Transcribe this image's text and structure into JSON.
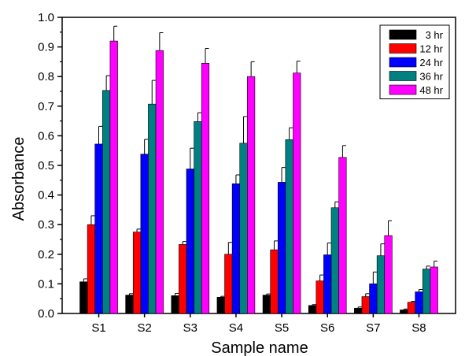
{
  "chart_data": {
    "type": "bar",
    "xlabel": "Sample name",
    "ylabel": "Absorbance",
    "ylim": [
      0,
      1.0
    ],
    "y_ticks": [
      "0.0",
      "0.1",
      "0.2",
      "0.3",
      "0.4",
      "0.5",
      "0.6",
      "0.7",
      "0.8",
      "0.9",
      "1.0"
    ],
    "categories": [
      "S1",
      "S2",
      "S3",
      "S4",
      "S5",
      "S6",
      "S7",
      "S8"
    ],
    "legend_position": "top-right",
    "grid": false,
    "series": [
      {
        "name": "3 hr",
        "color": "#000000",
        "values": [
          0.107,
          0.062,
          0.06,
          0.055,
          0.062,
          0.027,
          0.018,
          0.012
        ],
        "errors": [
          0.01,
          0.005,
          0.008,
          0.003,
          0.004,
          0.003,
          0.004,
          0.003
        ]
      },
      {
        "name": "12 hr",
        "color": "#ff0000",
        "values": [
          0.3,
          0.275,
          0.233,
          0.2,
          0.215,
          0.11,
          0.057,
          0.038
        ],
        "errors": [
          0.03,
          0.01,
          0.01,
          0.04,
          0.03,
          0.02,
          0.01,
          0.003
        ]
      },
      {
        "name": "24 hr",
        "color": "#0000ff",
        "values": [
          0.572,
          0.538,
          0.488,
          0.438,
          0.443,
          0.198,
          0.1,
          0.073
        ],
        "errors": [
          0.06,
          0.05,
          0.07,
          0.03,
          0.05,
          0.04,
          0.04,
          0.008
        ]
      },
      {
        "name": "36 hr",
        "color": "#008080",
        "values": [
          0.753,
          0.707,
          0.648,
          0.575,
          0.587,
          0.357,
          0.195,
          0.15
        ],
        "errors": [
          0.05,
          0.08,
          0.03,
          0.09,
          0.04,
          0.02,
          0.04,
          0.01
        ]
      },
      {
        "name": "48 hr",
        "color": "#ff00ff",
        "values": [
          0.92,
          0.888,
          0.845,
          0.8,
          0.812,
          0.527,
          0.263,
          0.157
        ],
        "errors": [
          0.05,
          0.06,
          0.05,
          0.05,
          0.04,
          0.04,
          0.05,
          0.02
        ]
      }
    ]
  }
}
